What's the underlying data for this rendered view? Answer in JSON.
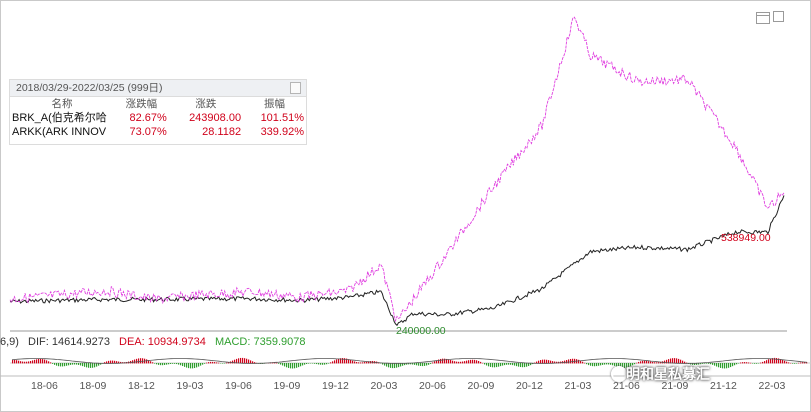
{
  "stats_panel": {
    "date_range": "2018/03/29-2022/03/25 (999日)",
    "columns": [
      "名称",
      "涨跌幅",
      "涨跌",
      "振幅"
    ],
    "rows": [
      {
        "name": "BRK_A(伯克希尔哈",
        "change_pct": "82.67%",
        "change": "243908.00",
        "amplitude": "101.51%"
      },
      {
        "name": "ARKK(ARK INNOV",
        "change_pct": "73.07%",
        "change": "28.1182",
        "amplitude": "339.92%"
      }
    ]
  },
  "macd": {
    "params": "6,9)",
    "dif": "DIF: 14614.9273",
    "dea": "DEA: 10934.9734",
    "macd": "MACD: 7359.9078",
    "colors": {
      "dif": "#333333",
      "dea": "#d0021b",
      "macd": "#2e9e2e"
    }
  },
  "annotations": {
    "low_label": "240000.00",
    "last_label": "538949.00"
  },
  "x_axis_labels": [
    "18-06",
    "18-09",
    "18-12",
    "19-03",
    "19-06",
    "19-09",
    "19-12",
    "20-03",
    "20-06",
    "20-09",
    "20-12",
    "21-03",
    "21-06",
    "21-09",
    "21-12",
    "22-03"
  ],
  "watermark": "明和星私募汇",
  "chart_data": {
    "type": "line",
    "x_labels": [
      "18-06",
      "18-09",
      "18-12",
      "19-03",
      "19-06",
      "19-09",
      "19-12",
      "20-03",
      "20-06",
      "20-09",
      "20-12",
      "21-03",
      "21-06",
      "21-09",
      "21-12",
      "22-03"
    ],
    "series": [
      {
        "name": "BRK_A(伯克希尔哈",
        "color": "#222222",
        "x": [
          "18-03",
          "18-06",
          "18-09",
          "18-12",
          "19-03",
          "19-06",
          "19-09",
          "19-12",
          "20-02",
          "20-03",
          "20-04",
          "20-06",
          "20-09",
          "20-12",
          "21-03",
          "21-06",
          "21-09",
          "21-12",
          "22-02",
          "22-03"
        ],
        "values": [
          295000,
          298000,
          300000,
          300000,
          301000,
          302000,
          298000,
          305000,
          318000,
          240000,
          268000,
          265000,
          280000,
          325000,
          410000,
          420000,
          415000,
          455000,
          455000,
          538949
        ]
      },
      {
        "name": "ARKK(ARK INNOV",
        "color": "#e040e0",
        "values_relative": "normalized to BRK_A start",
        "x": [
          "18-03",
          "18-06",
          "18-09",
          "18-12",
          "19-03",
          "19-06",
          "19-09",
          "19-12",
          "20-02",
          "20-03",
          "20-06",
          "20-09",
          "20-12",
          "21-02",
          "21-03",
          "21-06",
          "21-09",
          "21-12",
          "22-02",
          "22-03"
        ],
        "values": [
          301000,
          310000,
          320000,
          300000,
          311000,
          318000,
          305000,
          320000,
          380000,
          250000,
          400000,
          560000,
          700000,
          950000,
          860000,
          800000,
          805000,
          650000,
          510000,
          545000
        ]
      }
    ],
    "annotations": [
      {
        "label": "240000.00",
        "x": "20-03",
        "y": 240000
      },
      {
        "label": "538949.00",
        "x": "22-03",
        "y": 538949
      }
    ],
    "grid": false
  }
}
